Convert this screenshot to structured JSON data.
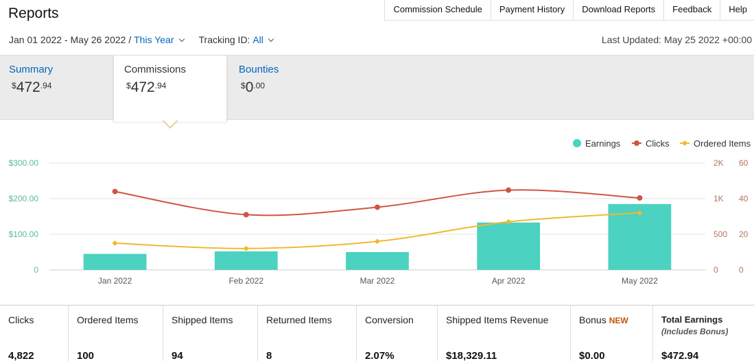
{
  "header": {
    "title": "Reports"
  },
  "top_nav": [
    {
      "label": "Commission Schedule"
    },
    {
      "label": "Payment History"
    },
    {
      "label": "Download Reports"
    },
    {
      "label": "Feedback"
    },
    {
      "label": "Help"
    }
  ],
  "filters": {
    "date_range": "Jan 01 2022 - May 26 2022 /",
    "period": "This Year",
    "tracking_label": "Tracking ID:",
    "tracking_value": "All"
  },
  "last_updated": "Last Updated: May 25 2022 +00:00",
  "tabs": [
    {
      "label": "Summary",
      "dollar": "$",
      "whole": "472",
      "cents": ".94"
    },
    {
      "label": "Commissions",
      "dollar": "$",
      "whole": "472",
      "cents": ".94"
    },
    {
      "label": "Bounties",
      "dollar": "$",
      "whole": "0",
      "cents": ".00"
    }
  ],
  "colors": {
    "earnings": "#4bd2c0",
    "clicks": "#cf5443",
    "ordered_items": "#f2b82f",
    "link": "#0066c0",
    "left_axis": "#5bb8a4",
    "right_axis": "#b07560"
  },
  "chart_data": {
    "type": "bar",
    "categories": [
      "Jan 2022",
      "Feb 2022",
      "Mar 2022",
      "Apr 2022",
      "May 2022"
    ],
    "legend": {
      "position": "top-right",
      "entries": [
        "Earnings",
        "Clicks",
        "Ordered Items"
      ]
    },
    "y_left": {
      "ticks": [
        "$300.00",
        "$200.00",
        "$100.00",
        "0"
      ],
      "range": [
        0,
        300
      ]
    },
    "y_right_clicks": {
      "ticks": [
        "2K",
        "1K",
        "500",
        "0"
      ],
      "range": [
        0,
        1500
      ]
    },
    "y_right_items": {
      "ticks": [
        "60",
        "40",
        "20",
        "0"
      ],
      "range": [
        0,
        60
      ]
    },
    "series": [
      {
        "name": "Earnings",
        "kind": "bar",
        "axis": "left",
        "values": [
          45,
          52,
          50,
          133,
          185
        ]
      },
      {
        "name": "Clicks",
        "kind": "line",
        "axis": "right_clicks",
        "values": [
          1100,
          775,
          880,
          1120,
          1010
        ]
      },
      {
        "name": "Ordered Items",
        "kind": "line",
        "axis": "right_items",
        "values": [
          15,
          12,
          16,
          27,
          32
        ]
      }
    ],
    "grid": true
  },
  "stats": [
    {
      "label": "Clicks",
      "value": "4,822"
    },
    {
      "label": "Ordered Items",
      "value": "100"
    },
    {
      "label": "Shipped Items",
      "value": "94"
    },
    {
      "label": "Returned Items",
      "value": "8"
    },
    {
      "label": "Conversion",
      "value": "2.07%"
    },
    {
      "label": "Shipped Items Revenue",
      "value": "$18,329.11"
    },
    {
      "label": "Bonus",
      "badge": "NEW",
      "value": "$0.00"
    },
    {
      "label": "Total Earnings",
      "sub": "(Includes Bonus)",
      "value": "$472.94"
    }
  ]
}
